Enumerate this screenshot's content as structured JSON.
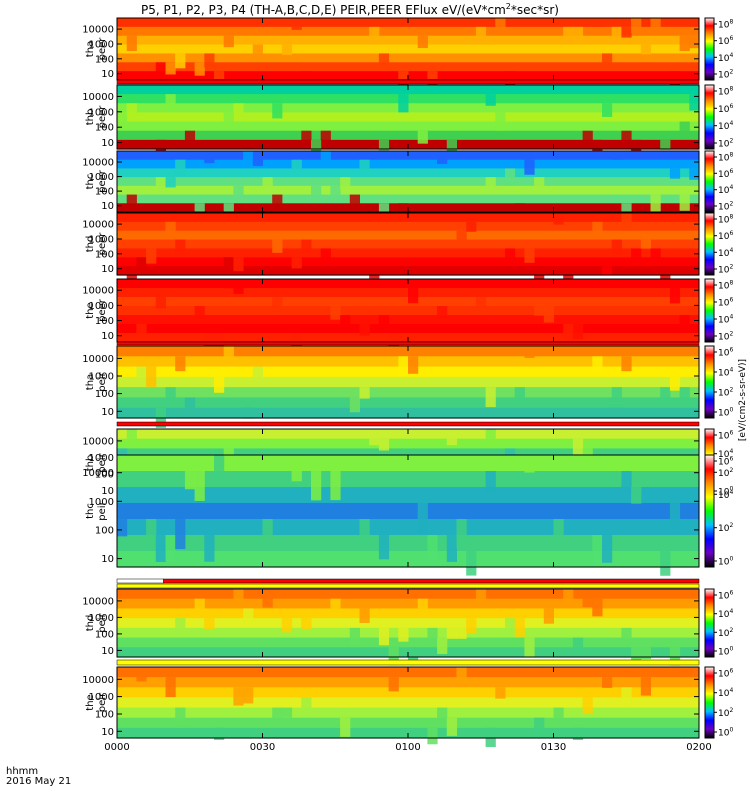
{
  "figure": {
    "title": "P5, P1, P2, P3, P4 (TH-A,B,C,D,E) PEIR,PEER EFlux eV/(eV*cm",
    "title_sup": "2",
    "title_tail": "*sec*sr)",
    "time_axis_label": "hhmm",
    "date_label": "2016 May 21"
  },
  "chart_data": {
    "type": "heatmap",
    "x_axis": {
      "ticks": [
        "0000",
        "0030",
        "0100",
        "0130",
        "0200"
      ],
      "range": [
        "0000",
        "0200"
      ]
    },
    "panels": [
      {
        "label": "tha peer",
        "species": "electrons",
        "probe": "tha",
        "colorbar_exponents": [
          "8",
          "6",
          "4",
          "2"
        ],
        "colorbar_unit": "eV/(cm2-s-sr-eV)"
      },
      {
        "label": "thb peer",
        "species": "electrons",
        "probe": "thb",
        "colorbar_exponents": [
          "8",
          "6",
          "4",
          "2"
        ],
        "colorbar_unit": "eV/(cm2-s-sr-eV)"
      },
      {
        "label": "thc peer",
        "species": "electrons",
        "probe": "thc",
        "colorbar_exponents": [
          "8",
          "6",
          "4",
          "2"
        ],
        "colorbar_unit": "eV/(cm2-s-sr-eV)"
      },
      {
        "label": "thd peer",
        "species": "electrons",
        "probe": "thd",
        "colorbar_exponents": [
          "8",
          "6",
          "4",
          "2"
        ],
        "colorbar_unit": "eV/(cm2-s-sr-eV)"
      },
      {
        "label": "the peer",
        "species": "electrons",
        "probe": "the",
        "colorbar_exponents": [
          "8",
          "6",
          "4",
          "2"
        ],
        "colorbar_unit": "eV/(cm2-s-sr-eV)"
      },
      {
        "label": "tha peir",
        "species": "ions",
        "probe": "tha",
        "colorbar_exponents": [
          "6",
          "4",
          "2",
          "0"
        ],
        "colorbar_unit": "eV/(cm2-s-sr-eV)"
      },
      {
        "label": "thb peir",
        "species": "ions",
        "probe": "thb",
        "colorbar_exponents": [
          "6",
          "4",
          "2",
          "0"
        ],
        "colorbar_unit": "eV/(cm2-s-sr-eV)"
      },
      {
        "label": "thc peir",
        "species": "ions",
        "probe": "thc",
        "colorbar_exponents": [
          "6",
          "4",
          "2",
          "0"
        ],
        "colorbar_unit": "eV/(cm2-s-sr-eV)"
      },
      {
        "label": "thd peir",
        "species": "ions",
        "probe": "thd",
        "colorbar_exponents": [
          "6",
          "4",
          "2",
          "0"
        ],
        "colorbar_unit": "eV/(cm2-s-sr-eV)"
      },
      {
        "label": "the peir",
        "species": "ions",
        "probe": "the",
        "colorbar_exponents": [
          "6",
          "4",
          "2",
          "0"
        ],
        "colorbar_unit": "eV/(cm2-s-sr-eV)"
      }
    ],
    "y_axis": {
      "scale": "log",
      "ticks": [
        "10",
        "100",
        "1000",
        "10000"
      ],
      "units": "eV"
    },
    "colorbar": {
      "scale": "log",
      "palette": [
        "#ffffff",
        "#ff0000",
        "#ff8c00",
        "#ffff00",
        "#00ff00",
        "#00c0ff",
        "#0000ff",
        "#6a00c0",
        "#000000"
      ],
      "exponent_base": "10",
      "unit_text": "[eV/(cm2-s-sr-eV)]"
    },
    "status_bars": [
      {
        "after_panel": "tha peer",
        "colors": [
          "#ff0000"
        ]
      },
      {
        "after_panel": "the peer",
        "colors": [
          "#ff0000"
        ]
      },
      {
        "after_panel": "tha peir",
        "colors": [
          "#ff0000"
        ]
      },
      {
        "after_panel": "thb peir",
        "colors": [
          "#ffffff",
          "#ff0000"
        ]
      },
      {
        "after_panel": "thc peir",
        "colors": [
          "#ffff00"
        ]
      },
      {
        "after_panel": "thd peir",
        "colors": [
          "#ffff00"
        ]
      }
    ]
  }
}
